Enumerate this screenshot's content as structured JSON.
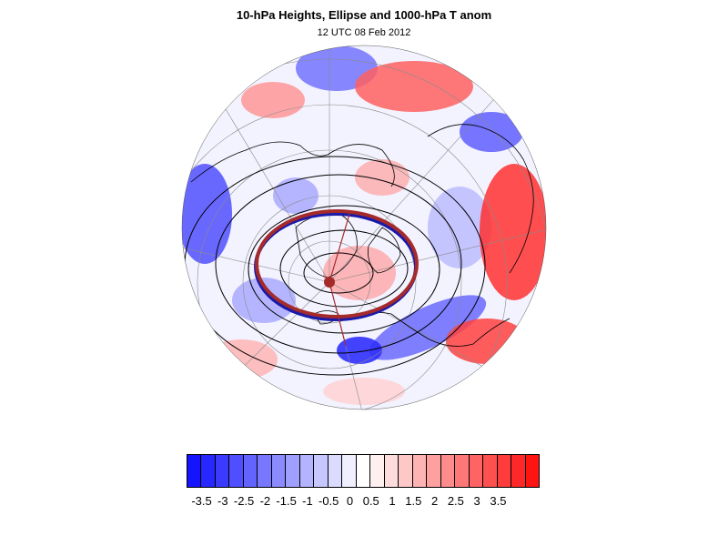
{
  "title": "10-hPa Heights, Ellipse and 1000-hPa T anom",
  "subtitle": "12 UTC 08 Feb 2012",
  "colors": {
    "cold": "#1a1aff",
    "warm": "#ff1a1a",
    "ellipse": "#a52a2a",
    "contour": "#000000"
  },
  "colorbar": {
    "segments": [
      "#1414ff",
      "#2727ff",
      "#3b3bff",
      "#4f4fff",
      "#6363ff",
      "#7777ff",
      "#8b8bff",
      "#9f9fff",
      "#b3b3ff",
      "#c7c7ff",
      "#dbdbff",
      "#efefff",
      "#ffffff",
      "#fff0f0",
      "#ffdcdc",
      "#ffc8c8",
      "#ffb4b4",
      "#ffa0a0",
      "#ff8c8c",
      "#ff7878",
      "#ff6464",
      "#ff5050",
      "#ff3c3c",
      "#ff2828",
      "#ff1414"
    ],
    "labels": [
      "-3.5",
      "-3",
      "-2.5",
      "-2",
      "-1.5",
      "-1",
      "-0.5",
      "0",
      "0.5",
      "1",
      "1.5",
      "2",
      "2.5",
      "3",
      "3.5"
    ]
  }
}
